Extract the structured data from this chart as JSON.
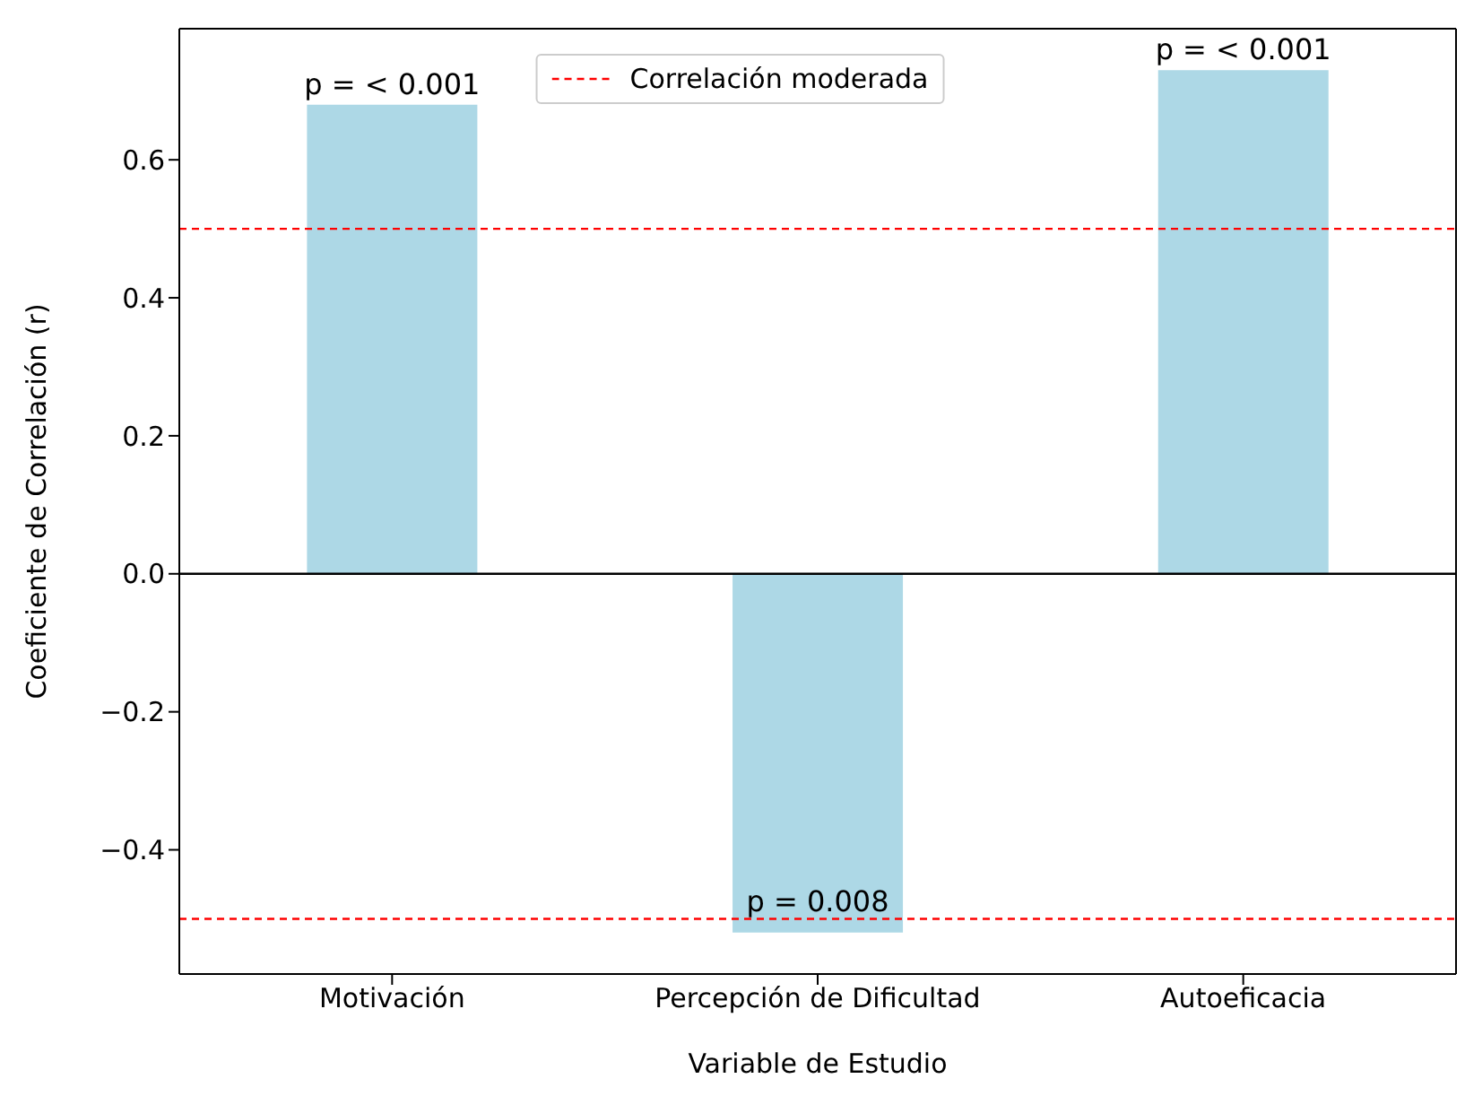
{
  "chart_data": {
    "type": "bar",
    "xlabel": "Variable de Estudio",
    "ylabel": "Coeficiente de Correlación (r)",
    "categories": [
      "Motivación",
      "Percepción de Dificultad",
      "Autoeficacia"
    ],
    "values": [
      0.68,
      -0.52,
      0.73
    ],
    "color": "#add8e6",
    "ylim": [
      -0.58,
      0.79
    ],
    "yticks": [
      {
        "value": -0.4,
        "label": "−0.4"
      },
      {
        "value": -0.2,
        "label": "−0.2"
      },
      {
        "value": 0,
        "label": "0.0"
      },
      0.2,
      0.4,
      0.6
    ],
    "ref_lines": [
      {
        "axis": "y",
        "value": 0.5,
        "label": "Correlación moderada",
        "color": "#ff0000",
        "line_style": "dashed"
      },
      {
        "axis": "y",
        "value": -0.5,
        "color": "#ff0000",
        "line_style": "dashed"
      },
      {
        "axis": "y",
        "value": 0,
        "color": "#000000",
        "line_style": "solid"
      }
    ],
    "annotations": [
      {
        "text": "p = < 0.001",
        "x": "Motivación",
        "y": 0.68
      },
      {
        "text": "p = 0.008",
        "x": "Percepción de Dificultad",
        "y": -0.52
      },
      {
        "text": "p = < 0.001",
        "x": "Autoeficacia",
        "y": 0.73
      }
    ],
    "legend": "top"
  }
}
